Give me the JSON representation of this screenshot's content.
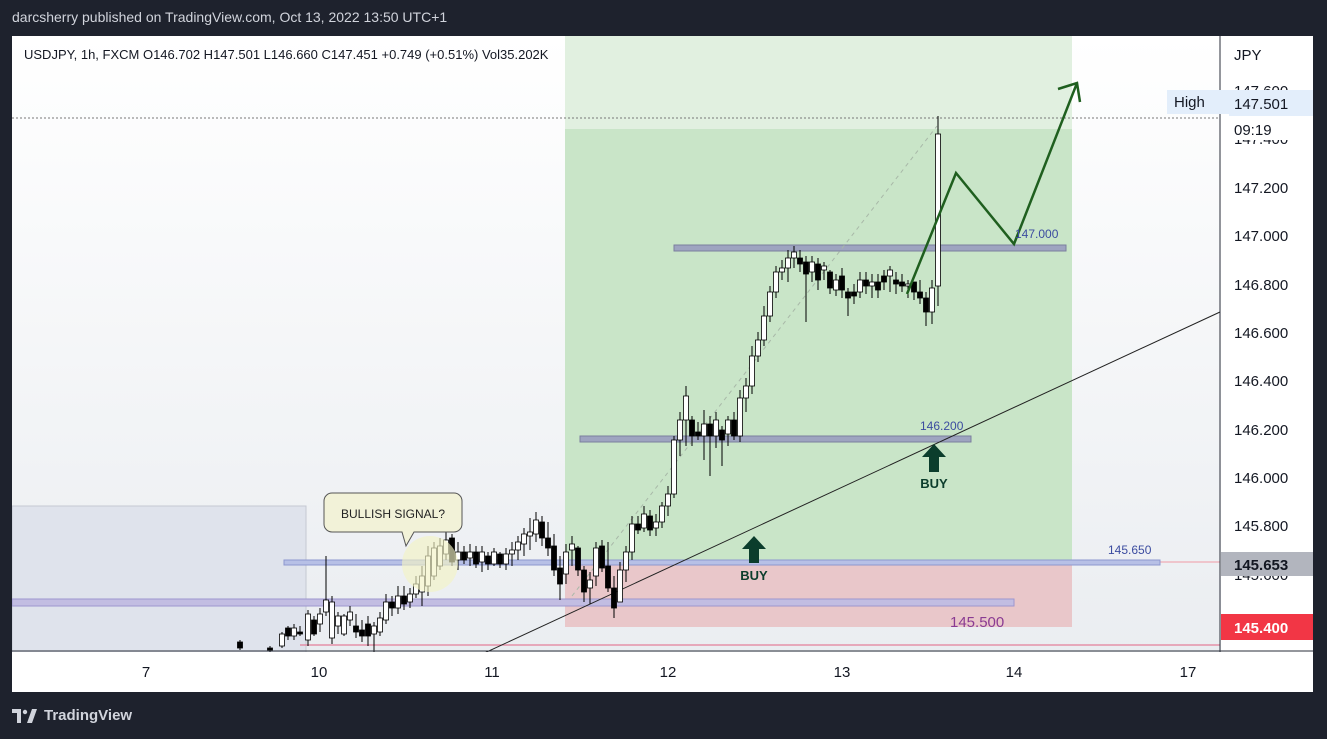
{
  "header": {
    "published_line": "darcsherry published on TradingView.com, Oct 13, 2022 13:50 UTC+1"
  },
  "legend": {
    "symbol_line": "USDJPY, 1h, FXCM  O146.702  H147.501  L146.660  C147.451  +0.749 (+0.51%)  Vol35.202K"
  },
  "price_axis": {
    "currency": "JPY",
    "ticks": [
      "147.600",
      "147.400",
      "147.200",
      "147.000",
      "146.800",
      "146.600",
      "146.400",
      "146.200",
      "146.000",
      "145.800",
      "145.600"
    ],
    "high_label": "High",
    "high_value": "147.501",
    "countdown": "09:19",
    "current_price": "145.653",
    "red_price": "145.400"
  },
  "time_axis": {
    "labels": [
      "7",
      "10",
      "11",
      "12",
      "13",
      "14",
      "17"
    ]
  },
  "annotations": {
    "callout": "BULLISH SIGNAL?",
    "buy_label_1": "BUY",
    "buy_label_2": "BUY",
    "level_147": "147.000",
    "level_1462": "146.200",
    "level_14565": "145.650",
    "level_1455": "145.500"
  },
  "colors": {
    "up_candle": "#ffffff",
    "down_candle": "#000000",
    "profit_zone": "#c8e6c9",
    "loss_zone": "#ef9a9a",
    "level_line": "#8a8aa8",
    "forecast_arrow": "#1b5e20",
    "buy_arrow": "#0b3d2c",
    "price_badge_red": "#f23645",
    "price_badge_gray": "#b2b5be"
  },
  "footer": {
    "brand": "TradingView"
  }
}
